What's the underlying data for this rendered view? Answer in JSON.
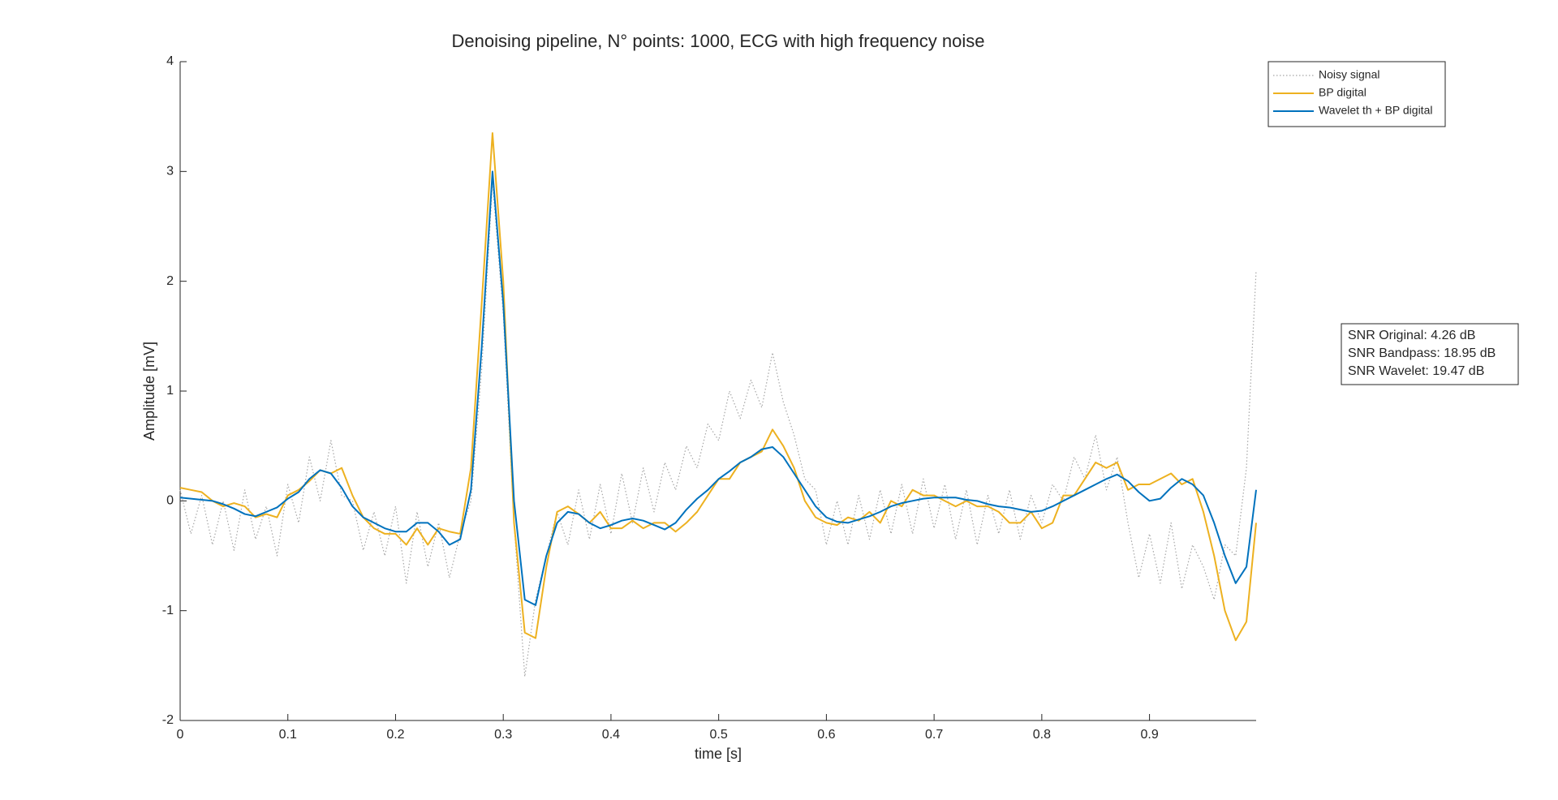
{
  "chart_data": {
    "type": "line",
    "title": "Denoising pipeline, N° points: 1000, ECG with high frequency noise",
    "x_label": "time [s]",
    "y_label": "Amplitude [mV]",
    "x": [
      0,
      0.01,
      0.02,
      0.03,
      0.04,
      0.05,
      0.06,
      0.07,
      0.08,
      0.09,
      0.1,
      0.11,
      0.12,
      0.13,
      0.14,
      0.15,
      0.16,
      0.17,
      0.18,
      0.19,
      0.2,
      0.21,
      0.22,
      0.23,
      0.24,
      0.25,
      0.26,
      0.27,
      0.28,
      0.29,
      0.3,
      0.31,
      0.32,
      0.33,
      0.34,
      0.35,
      0.36,
      0.37,
      0.38,
      0.39,
      0.4,
      0.41,
      0.42,
      0.43,
      0.44,
      0.45,
      0.46,
      0.47,
      0.48,
      0.49,
      0.5,
      0.51,
      0.52,
      0.53,
      0.54,
      0.55,
      0.56,
      0.57,
      0.58,
      0.59,
      0.6,
      0.61,
      0.62,
      0.63,
      0.64,
      0.65,
      0.66,
      0.67,
      0.68,
      0.69,
      0.7,
      0.71,
      0.72,
      0.73,
      0.74,
      0.75,
      0.76,
      0.77,
      0.78,
      0.79,
      0.8,
      0.81,
      0.82,
      0.83,
      0.84,
      0.85,
      0.86,
      0.87,
      0.88,
      0.89,
      0.9,
      0.91,
      0.92,
      0.93,
      0.94,
      0.95,
      0.96,
      0.97,
      0.98,
      0.99,
      0.999
    ],
    "series": [
      {
        "name": "Noisy signal",
        "color": "#a6a6a6",
        "style": "dotted",
        "values": [
          0.1,
          -0.3,
          0.05,
          -0.4,
          0.0,
          -0.45,
          0.1,
          -0.35,
          -0.05,
          -0.5,
          0.15,
          -0.2,
          0.4,
          0.0,
          0.55,
          0.05,
          0.0,
          -0.45,
          -0.1,
          -0.5,
          -0.05,
          -0.75,
          -0.1,
          -0.6,
          -0.2,
          -0.7,
          -0.3,
          0.0,
          1.2,
          2.9,
          1.7,
          -0.2,
          -1.6,
          -0.9,
          -0.5,
          -0.1,
          -0.4,
          0.1,
          -0.35,
          0.15,
          -0.3,
          0.25,
          -0.2,
          0.3,
          -0.1,
          0.35,
          0.1,
          0.5,
          0.3,
          0.7,
          0.55,
          1.0,
          0.75,
          1.1,
          0.85,
          1.35,
          0.9,
          0.6,
          0.2,
          0.1,
          -0.4,
          0.0,
          -0.4,
          0.05,
          -0.35,
          0.1,
          -0.3,
          0.15,
          -0.3,
          0.2,
          -0.25,
          0.15,
          -0.35,
          0.1,
          -0.4,
          0.05,
          -0.3,
          0.1,
          -0.35,
          0.05,
          -0.2,
          0.15,
          0.0,
          0.4,
          0.2,
          0.6,
          0.1,
          0.4,
          -0.2,
          -0.7,
          -0.3,
          -0.75,
          -0.2,
          -0.8,
          -0.4,
          -0.6,
          -0.9,
          -0.4,
          -0.5,
          0.3,
          2.1
        ]
      },
      {
        "name": "BP digital",
        "color": "#EDB120",
        "style": "solid",
        "values": [
          0.12,
          0.1,
          0.08,
          0.0,
          -0.05,
          -0.02,
          -0.05,
          -0.15,
          -0.12,
          -0.15,
          0.05,
          0.1,
          0.18,
          0.28,
          0.25,
          0.3,
          0.05,
          -0.15,
          -0.25,
          -0.3,
          -0.3,
          -0.4,
          -0.25,
          -0.4,
          -0.25,
          -0.28,
          -0.3,
          0.3,
          1.8,
          3.35,
          2.0,
          -0.2,
          -1.2,
          -1.25,
          -0.6,
          -0.1,
          -0.05,
          -0.12,
          -0.2,
          -0.1,
          -0.25,
          -0.25,
          -0.18,
          -0.25,
          -0.2,
          -0.2,
          -0.28,
          -0.2,
          -0.1,
          0.05,
          0.2,
          0.2,
          0.35,
          0.4,
          0.45,
          0.65,
          0.5,
          0.3,
          0.0,
          -0.15,
          -0.2,
          -0.22,
          -0.15,
          -0.18,
          -0.1,
          -0.2,
          0.0,
          -0.05,
          0.1,
          0.05,
          0.05,
          0.0,
          -0.05,
          0.0,
          -0.05,
          -0.05,
          -0.1,
          -0.2,
          -0.2,
          -0.1,
          -0.25,
          -0.2,
          0.05,
          0.05,
          0.2,
          0.35,
          0.3,
          0.35,
          0.1,
          0.15,
          0.15,
          0.2,
          0.25,
          0.15,
          0.2,
          -0.1,
          -0.5,
          -1.0,
          -1.27,
          -1.1,
          -0.2
        ]
      },
      {
        "name": "Wavelet th + BP digital",
        "color": "#0072BD",
        "style": "solid",
        "values": [
          0.03,
          0.02,
          0.01,
          0,
          -0.03,
          -0.07,
          -0.12,
          -0.14,
          -0.1,
          -0.06,
          0.02,
          0.08,
          0.2,
          0.28,
          0.25,
          0.12,
          -0.05,
          -0.15,
          -0.2,
          -0.25,
          -0.28,
          -0.28,
          -0.2,
          -0.2,
          -0.28,
          -0.4,
          -0.35,
          0.1,
          1.4,
          3.0,
          1.8,
          0,
          -0.9,
          -0.95,
          -0.5,
          -0.2,
          -0.1,
          -0.12,
          -0.2,
          -0.25,
          -0.22,
          -0.18,
          -0.16,
          -0.18,
          -0.22,
          -0.26,
          -0.2,
          -0.08,
          0.02,
          0.1,
          0.2,
          0.27,
          0.35,
          0.4,
          0.47,
          0.49,
          0.4,
          0.25,
          0.1,
          -0.05,
          -0.15,
          -0.19,
          -0.2,
          -0.17,
          -0.14,
          -0.1,
          -0.05,
          -0.02,
          0,
          0.02,
          0.03,
          0.03,
          0.03,
          0.01,
          0,
          -0.03,
          -0.05,
          -0.06,
          -0.08,
          -0.1,
          -0.09,
          -0.05,
          0,
          0.05,
          0.1,
          0.15,
          0.2,
          0.24,
          0.18,
          0.08,
          0,
          0.02,
          0.12,
          0.2,
          0.15,
          0.05,
          -0.2,
          -0.5,
          -0.75,
          -0.6,
          0.1
        ]
      }
    ],
    "xlim": [
      0,
      0.999
    ],
    "ylim": [
      -2,
      4
    ],
    "xticks": [
      0,
      0.1,
      0.2,
      0.3,
      0.4,
      0.5,
      0.6,
      0.7,
      0.8,
      0.9
    ],
    "yticks": [
      -2,
      -1,
      0,
      1,
      2,
      3,
      4
    ],
    "grid": false,
    "legend": "northeast",
    "annotation": [
      "SNR Original: 4.26 dB",
      "SNR Bandpass: 18.95 dB",
      "SNR Wavelet: 19.47 dB"
    ]
  }
}
